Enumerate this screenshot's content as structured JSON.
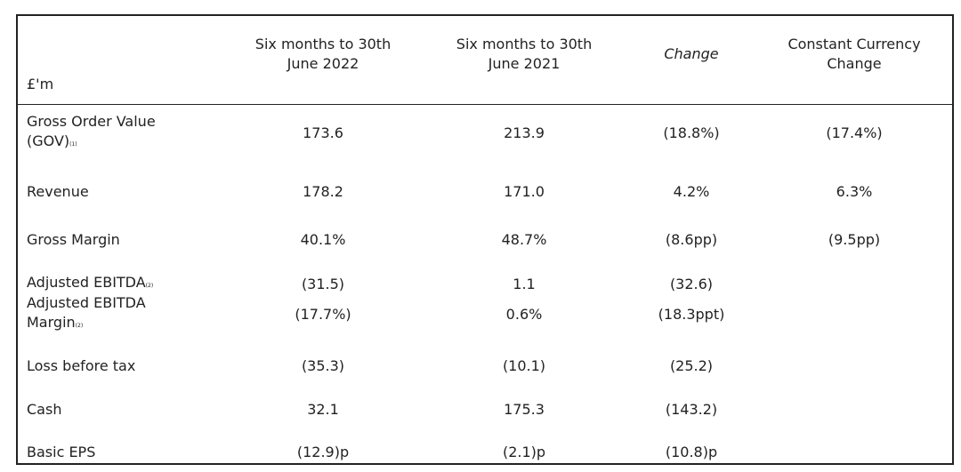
{
  "table": {
    "header": [
      "£'m",
      "Six months to 30th June 2022",
      "Six months to 30th June 2021",
      "Change",
      "Constant Currency Change"
    ],
    "rows": [
      [
        {
          "label": "Gross Order Value (GOV)",
          "note": "(1)"
        },
        "173.6",
        "213.9",
        "(18.8%)",
        "(17.4%)"
      ],
      [
        {
          "label": "Revenue"
        },
        "178.2",
        "171.0",
        "4.2%",
        "6.3%"
      ],
      [
        {
          "label": "Gross Margin"
        },
        "40.1%",
        "48.7%",
        "(8.6pp)",
        "(9.5pp)"
      ],
      [
        {
          "label": "Adjusted EBITDA",
          "note": "(2)"
        },
        "(31.5)",
        "1.1",
        "(32.6)"
      ],
      [
        {
          "label": "Adjusted EBITDA Margin",
          "note": "(2)"
        },
        "(17.7%)",
        "0.6%",
        "(18.3ppt)"
      ],
      [
        {
          "label": "Loss before tax"
        },
        "(35.3)",
        "(10.1)",
        "(25.2)"
      ],
      [
        {
          "label": "Cash"
        },
        "32.1",
        "175.3",
        "(143.2)"
      ],
      [
        {
          "label": "Basic EPS"
        },
        "(12.9)p",
        "(2.1)p",
        "(10.8)p"
      ]
    ]
  }
}
